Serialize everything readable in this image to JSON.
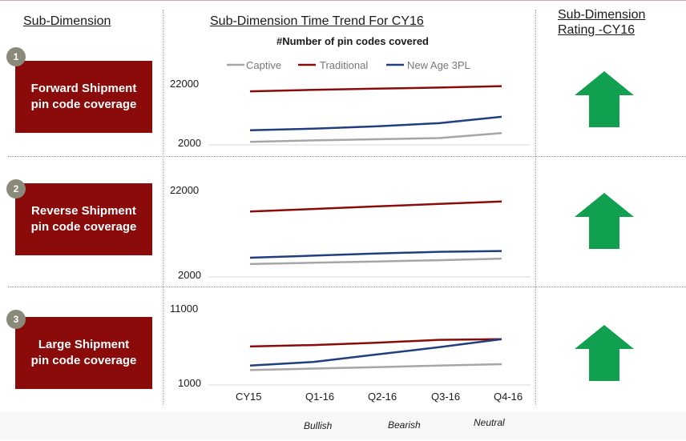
{
  "headers": {
    "sub_dimension": "Sub-Dimension",
    "trend": "Sub-Dimension Time Trend For CY16",
    "rating_line1": "Sub-Dimension",
    "rating_line2": "Rating -CY16",
    "subtitle": "#Number of pin codes covered"
  },
  "rows": [
    {
      "num": "1",
      "line1": "Forward Shipment",
      "line2": "pin code coverage",
      "rating": "Bullish"
    },
    {
      "num": "2",
      "line1": "Reverse Shipment",
      "line2": "pin code coverage",
      "rating": "Bullish"
    },
    {
      "num": "3",
      "line1": "Large Shipment",
      "line2": "pin code coverage",
      "rating": "Bullish"
    }
  ],
  "legend": {
    "bullish": "Bullish",
    "bearish": "Bearish",
    "neutral": "Neutral"
  },
  "colors": {
    "captive": "#a6a6a6",
    "traditional": "#8b0a0a",
    "new_age": "#1f3f7f",
    "bullish": "#10a050",
    "bearish": "#e0241c",
    "neutral": "#f5b800",
    "dim_box": "#8b0a0a"
  },
  "chart_data": [
    {
      "type": "line",
      "categories": [
        "CY15",
        "Q1-16",
        "Q2-16",
        "Q3-16",
        "Q4-16"
      ],
      "ylim": [
        2000,
        22000
      ],
      "yticks": [
        "22000",
        "2000"
      ],
      "series": [
        {
          "name": "Captive",
          "values": [
            2200,
            2700,
            3100,
            3500,
            5200
          ]
        },
        {
          "name": "Traditional",
          "values": [
            19500,
            20000,
            20400,
            20800,
            21300
          ]
        },
        {
          "name": "New Age 3PL",
          "values": [
            6200,
            6700,
            7500,
            8600,
            10800
          ]
        }
      ]
    },
    {
      "type": "line",
      "categories": [
        "CY15",
        "Q1-16",
        "Q2-16",
        "Q3-16",
        "Q4-16"
      ],
      "ylim": [
        2000,
        22000
      ],
      "yticks": [
        "22000",
        "2000"
      ],
      "series": [
        {
          "name": "Captive",
          "values": [
            4500,
            4800,
            5100,
            5400,
            5800
          ]
        },
        {
          "name": "Traditional",
          "values": [
            17000,
            17600,
            18200,
            18800,
            19400
          ]
        },
        {
          "name": "New Age 3PL",
          "values": [
            6000,
            6500,
            7000,
            7400,
            7600
          ]
        }
      ]
    },
    {
      "type": "line",
      "categories": [
        "CY15",
        "Q1-16",
        "Q2-16",
        "Q3-16",
        "Q4-16"
      ],
      "ylim": [
        1000,
        11000
      ],
      "yticks": [
        "11000",
        "1000"
      ],
      "series": [
        {
          "name": "Captive",
          "values": [
            2700,
            2900,
            3100,
            3300,
            3500
          ]
        },
        {
          "name": "Traditional",
          "values": [
            5900,
            6100,
            6400,
            6800,
            6900
          ]
        },
        {
          "name": "New Age 3PL",
          "values": [
            3300,
            3800,
            4800,
            5800,
            6900
          ]
        }
      ]
    }
  ]
}
